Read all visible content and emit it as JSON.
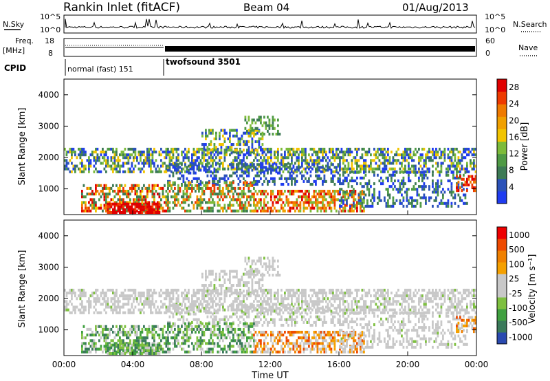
{
  "header": {
    "station": "Rankin Inlet (fitACF)",
    "beam": "Beam 04",
    "date": "01/Aug/2013"
  },
  "colors": {
    "power": [
      "#1f3cf0",
      "#2b52b8",
      "#3d7a55",
      "#4f9a45",
      "#7dbb3a",
      "#f2c400",
      "#f0a000",
      "#ef7a00",
      "#ee3a00",
      "#e00000"
    ],
    "velocity": [
      "#ee0000",
      "#ee4a00",
      "#f08000",
      "#f5a000",
      "#c8c8c8",
      "#c8c8c8",
      "#7ec040",
      "#40a040",
      "#3a7a5a",
      "#2a4ab0"
    ]
  },
  "chart_data": [
    {
      "type": "line",
      "name": "noise-panel",
      "left_label": "N.Sky",
      "right_label": "N.Search",
      "left_ticks": [
        "10^5",
        "10^0"
      ],
      "right_ticks": [
        "10^5",
        "10^0"
      ],
      "note": "N.Sky solid, N.Search dotted; log scale"
    },
    {
      "type": "line",
      "name": "freq-panel",
      "left_label_1": "Freq.",
      "left_label_2": "[MHz]",
      "right_label": "Nave",
      "left_ticks": [
        "18",
        "8"
      ],
      "right_ticks": [
        "60",
        "0"
      ],
      "cpid_label": "CPID",
      "cpid_segments": [
        {
          "label": "normal (fast) 151",
          "start_hour": 0.0,
          "end_hour": 5.95
        },
        {
          "label": "twofsound 3501",
          "start_hour": 5.95,
          "end_hour": 24.0
        }
      ]
    },
    {
      "type": "heatmap",
      "name": "power",
      "ylabel": "Slant Range [km]",
      "y_ticks": [
        "1000",
        "2000",
        "3000",
        "4000"
      ],
      "ylim": [
        180,
        4500
      ],
      "colorbar_label": "Power [dB]",
      "colorbar_ticks": [
        "4",
        "8",
        "12",
        "16",
        "20",
        "24",
        "28"
      ],
      "colorbar_range": [
        0,
        30
      ]
    },
    {
      "type": "heatmap",
      "name": "velocity",
      "ylabel": "Slant Range [km]",
      "y_ticks": [
        "1000",
        "2000",
        "3000",
        "4000"
      ],
      "ylim": [
        180,
        4500
      ],
      "colorbar_label": "Velocity  [m s⁻¹]",
      "colorbar_ticks": [
        "1000",
        "500",
        "100",
        "25",
        "-25",
        "-100",
        "-500",
        "-1000"
      ],
      "x_ticks": [
        "00:00",
        "04:00",
        "08:00",
        "12:00",
        "16:00",
        "20:00",
        "00:00"
      ],
      "xlabel": "Time UT",
      "xlim_hours": [
        0,
        24
      ]
    }
  ]
}
